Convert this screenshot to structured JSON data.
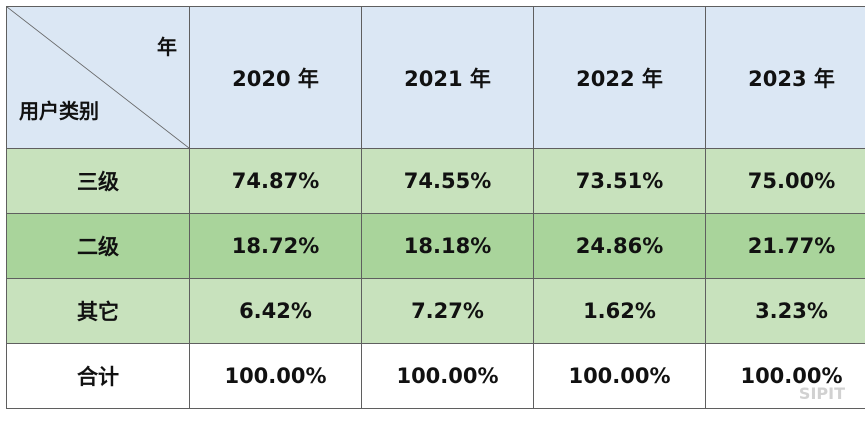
{
  "table": {
    "corner": {
      "top_label": "年",
      "bottom_label": "用户类别"
    },
    "years": [
      "2020 年",
      "2021 年",
      "2022 年",
      "2023 年"
    ],
    "rows": [
      {
        "category": "三级",
        "values": [
          "74.87%",
          "74.55%",
          "73.51%",
          "75.00%"
        ]
      },
      {
        "category": "二级",
        "values": [
          "18.72%",
          "18.18%",
          "24.86%",
          "21.77%"
        ]
      },
      {
        "category": "其它",
        "values": [
          "6.42%",
          "7.27%",
          "1.62%",
          "3.23%"
        ]
      },
      {
        "category": "合计",
        "values": [
          "100.00%",
          "100.00%",
          "100.00%",
          "100.00%"
        ]
      }
    ]
  },
  "watermark": "SIPIT",
  "colors": {
    "header_bg": "#dbe7f4",
    "light_green": "#c8e2bd",
    "dark_green": "#a9d49b",
    "total_bg": "#ffffff"
  }
}
